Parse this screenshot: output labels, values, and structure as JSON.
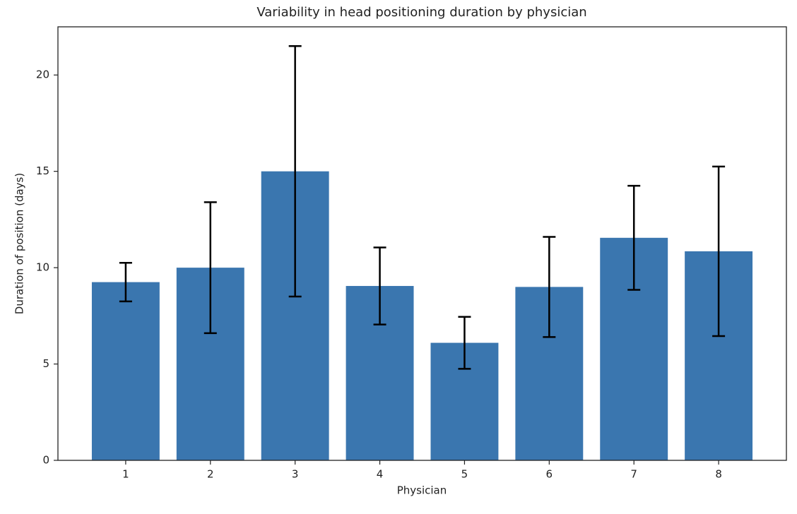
{
  "chart_data": {
    "type": "bar",
    "title": "Variability in head positioning duration by physician",
    "x_label": "Physician",
    "y_label": "Duration of position (days)",
    "categories": [
      "1",
      "2",
      "3",
      "4",
      "5",
      "6",
      "7",
      "8"
    ],
    "values": [
      9.25,
      10.0,
      15.0,
      9.05,
      6.1,
      9.0,
      11.55,
      10.85
    ],
    "errors": [
      1.0,
      3.4,
      6.5,
      2.0,
      1.35,
      2.6,
      2.7,
      4.4
    ],
    "color": "#3a76af",
    "error_color": "#000000",
    "ylim": [
      0,
      22.5
    ],
    "yticks": [
      0,
      5,
      10,
      15,
      20
    ],
    "grid": false
  }
}
